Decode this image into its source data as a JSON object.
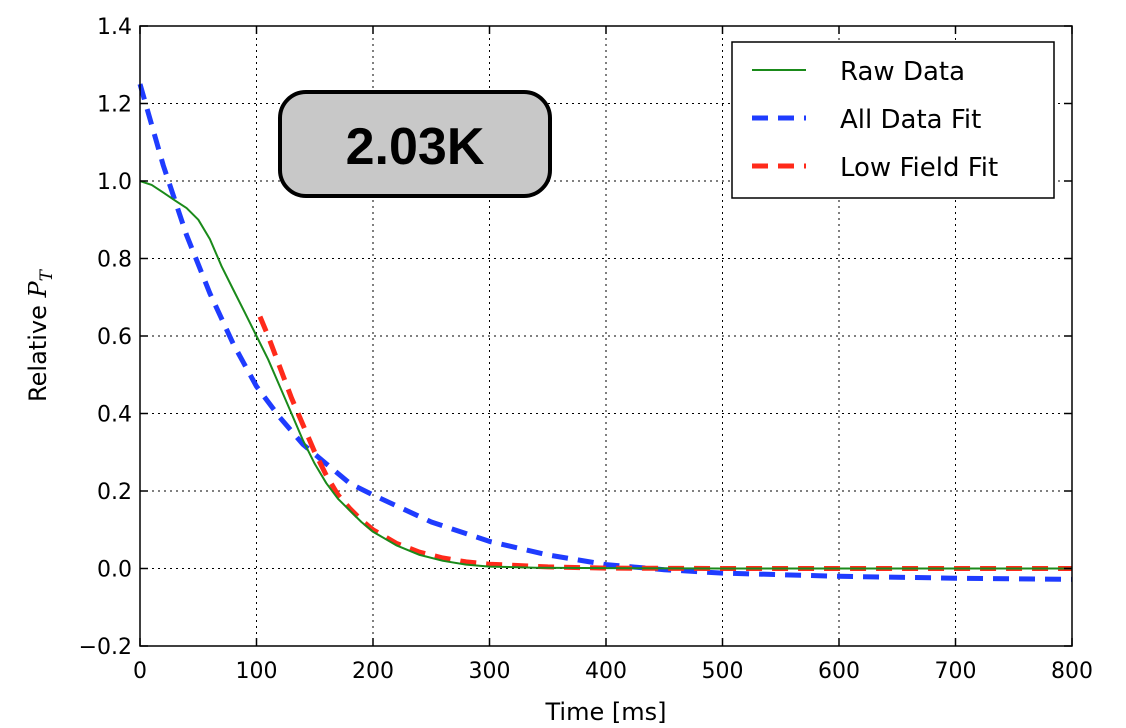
{
  "chart_data": {
    "type": "line",
    "xlabel": "Time [ms]",
    "ylabel_prefix": "Relative ",
    "ylabel_symbol": "P",
    "ylabel_subscript": "T",
    "xlim": [
      0,
      800
    ],
    "ylim": [
      -0.2,
      1.4
    ],
    "xticks": [
      0,
      100,
      200,
      300,
      400,
      500,
      600,
      700,
      800
    ],
    "yticks": [
      -0.2,
      0.0,
      0.2,
      0.4,
      0.6,
      0.8,
      1.0,
      1.2,
      1.4
    ],
    "xtick_labels": [
      "0",
      "100",
      "200",
      "300",
      "400",
      "500",
      "600",
      "700",
      "800"
    ],
    "ytick_labels": [
      "−0.2",
      "0.0",
      "0.2",
      "0.4",
      "0.6",
      "0.8",
      "1.0",
      "1.2",
      "1.4"
    ],
    "grid": true,
    "legend_position": "top-right",
    "annotation": "2.03K",
    "series": [
      {
        "name": "Raw Data",
        "color": "#1a8a1a",
        "style": "solid",
        "x": [
          0,
          10,
          20,
          30,
          40,
          50,
          60,
          70,
          80,
          90,
          100,
          110,
          120,
          130,
          140,
          150,
          160,
          170,
          180,
          190,
          200,
          220,
          240,
          260,
          280,
          300,
          340,
          400,
          500,
          600,
          700,
          800
        ],
        "y": [
          1.0,
          0.99,
          0.97,
          0.95,
          0.93,
          0.9,
          0.85,
          0.78,
          0.72,
          0.66,
          0.6,
          0.54,
          0.47,
          0.4,
          0.33,
          0.27,
          0.22,
          0.18,
          0.15,
          0.12,
          0.095,
          0.06,
          0.035,
          0.02,
          0.01,
          0.005,
          0.002,
          0.001,
          0.0,
          0.0,
          0.0,
          0.0
        ]
      },
      {
        "name": "All Data Fit",
        "color": "#1f3cff",
        "style": "dashed",
        "x": [
          0,
          20,
          40,
          60,
          80,
          100,
          120,
          140,
          160,
          180,
          200,
          250,
          300,
          350,
          400,
          450,
          500,
          600,
          700,
          800
        ],
        "y": [
          1.25,
          1.04,
          0.86,
          0.71,
          0.58,
          0.47,
          0.39,
          0.32,
          0.27,
          0.22,
          0.19,
          0.12,
          0.07,
          0.035,
          0.01,
          -0.003,
          -0.012,
          -0.02,
          -0.025,
          -0.028
        ]
      },
      {
        "name": "Low Field Fit",
        "color": "#ff2a1a",
        "style": "dashed",
        "x": [
          103,
          110,
          120,
          130,
          140,
          150,
          160,
          170,
          180,
          190,
          200,
          220,
          240,
          260,
          280,
          300,
          350,
          400,
          500,
          600,
          700,
          800
        ],
        "y": [
          0.65,
          0.6,
          0.52,
          0.44,
          0.37,
          0.3,
          0.24,
          0.19,
          0.155,
          0.125,
          0.1,
          0.065,
          0.042,
          0.027,
          0.017,
          0.011,
          0.004,
          0.001,
          0.0,
          0.0,
          0.0,
          0.0
        ]
      }
    ]
  }
}
